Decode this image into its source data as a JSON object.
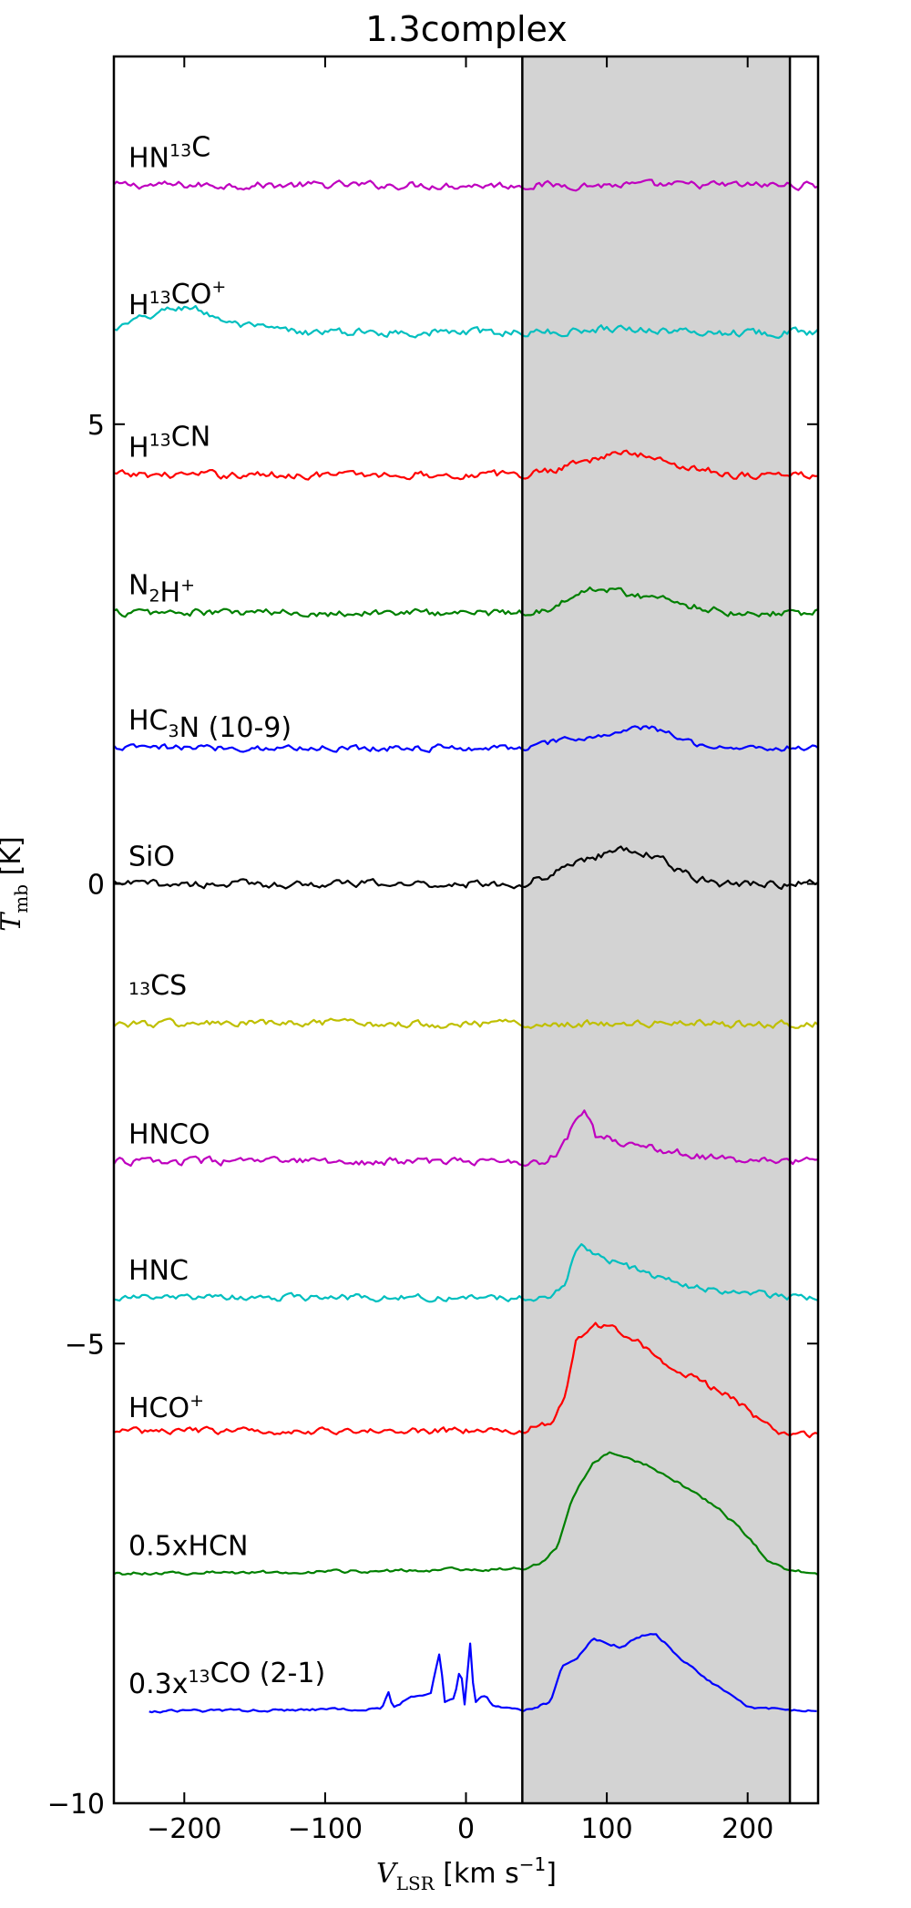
{
  "chart_data": {
    "type": "line",
    "title": "1.3complex",
    "xlabel": {
      "symbol": "V",
      "subscript": "LSR",
      "unit": " [km s",
      "unit_sup": "−1",
      "unit_end": "]"
    },
    "ylabel": {
      "symbol": "T",
      "subscript": "mb",
      "unit": " [K]"
    },
    "xlim": [
      -250,
      250
    ],
    "ylim": [
      -10,
      9
    ],
    "xticks": [
      -200,
      -100,
      0,
      100,
      200
    ],
    "xtick_labels": [
      "−200",
      "−100",
      "0",
      "100",
      "200"
    ],
    "yticks": [
      5,
      0,
      -5,
      -10
    ],
    "ytick_labels": [
      "5",
      "0",
      "−5",
      "−10"
    ],
    "shaded_region": {
      "x": [
        40,
        230
      ],
      "color": "#d3d3d3"
    },
    "series": [
      {
        "name": "HN13C",
        "label_parts": [
          {
            "t": "HN"
          },
          {
            "t": "13",
            "sup": true
          },
          {
            "t": "C"
          }
        ],
        "color": "#bf00bf",
        "offset": 7.6,
        "x_start": -250,
        "noise": 0.035,
        "profile": []
      },
      {
        "name": "H13CO+",
        "label_parts": [
          {
            "t": "H"
          },
          {
            "t": "13",
            "sup": true
          },
          {
            "t": "CO"
          },
          {
            "t": "+",
            "sup": true
          }
        ],
        "color": "#00bfbf",
        "offset": 6.0,
        "x_start": -250,
        "noise": 0.035,
        "profile": [
          [
            -250,
            0.02
          ],
          [
            -235,
            0.12
          ],
          [
            -210,
            0.25
          ],
          [
            -195,
            0.28
          ],
          [
            -180,
            0.18
          ],
          [
            -160,
            0.07
          ],
          [
            -120,
            0.0
          ],
          [
            70,
            0.0
          ],
          [
            100,
            0.05
          ],
          [
            130,
            0.03
          ],
          [
            160,
            0.0
          ]
        ]
      },
      {
        "name": "H13CN",
        "label_parts": [
          {
            "t": "H"
          },
          {
            "t": "13",
            "sup": true
          },
          {
            "t": "CN"
          }
        ],
        "color": "#ff0000",
        "offset": 4.45,
        "x_start": -250,
        "noise": 0.035,
        "profile": [
          [
            40,
            0.0
          ],
          [
            60,
            0.05
          ],
          [
            80,
            0.15
          ],
          [
            100,
            0.2
          ],
          [
            115,
            0.25
          ],
          [
            135,
            0.17
          ],
          [
            160,
            0.08
          ],
          [
            190,
            0.0
          ]
        ]
      },
      {
        "name": "N2H+",
        "label_parts": [
          {
            "t": "N"
          },
          {
            "t": "2",
            "sub": true
          },
          {
            "t": "H"
          },
          {
            "t": "+",
            "sup": true
          }
        ],
        "color": "#008000",
        "offset": 2.95,
        "x_start": -250,
        "noise": 0.035,
        "profile": [
          [
            40,
            0.0
          ],
          [
            60,
            0.05
          ],
          [
            75,
            0.15
          ],
          [
            92,
            0.28
          ],
          [
            110,
            0.22
          ],
          [
            135,
            0.16
          ],
          [
            160,
            0.08
          ],
          [
            190,
            0.0
          ]
        ]
      },
      {
        "name": "HC3N (10-9)",
        "label_parts": [
          {
            "t": "HC"
          },
          {
            "t": "3",
            "sub": true
          },
          {
            "t": "N (10-9)"
          }
        ],
        "color": "#0000ff",
        "offset": 1.48,
        "x_start": -250,
        "noise": 0.03,
        "profile": [
          [
            40,
            0.0
          ],
          [
            60,
            0.05
          ],
          [
            80,
            0.1
          ],
          [
            100,
            0.14
          ],
          [
            125,
            0.22
          ],
          [
            140,
            0.18
          ],
          [
            160,
            0.06
          ],
          [
            185,
            0.0
          ]
        ]
      },
      {
        "name": "SiO",
        "label_parts": [
          {
            "t": "SiO"
          }
        ],
        "color": "#000000",
        "offset": 0.0,
        "x_start": -250,
        "noise": 0.035,
        "profile": [
          [
            40,
            0.0
          ],
          [
            60,
            0.1
          ],
          [
            80,
            0.25
          ],
          [
            100,
            0.33
          ],
          [
            120,
            0.38
          ],
          [
            140,
            0.25
          ],
          [
            160,
            0.08
          ],
          [
            180,
            0.0
          ]
        ]
      },
      {
        "name": "13CS",
        "label_parts": [
          {
            "t": "13",
            "sup": true
          },
          {
            "t": "CS"
          }
        ],
        "color": "#bfbf00",
        "offset": -1.52,
        "x_start": -250,
        "noise": 0.035,
        "profile": []
      },
      {
        "name": "HNCO",
        "label_parts": [
          {
            "t": "HNCO"
          }
        ],
        "color": "#bf00bf",
        "offset": -3.02,
        "x_start": -250,
        "noise": 0.035,
        "profile": [
          [
            55,
            0.0
          ],
          [
            65,
            0.1
          ],
          [
            75,
            0.35
          ],
          [
            85,
            0.55
          ],
          [
            92,
            0.28
          ],
          [
            110,
            0.22
          ],
          [
            140,
            0.12
          ],
          [
            170,
            0.05
          ],
          [
            200,
            0.0
          ]
        ]
      },
      {
        "name": "HNC",
        "label_parts": [
          {
            "t": "HNC"
          }
        ],
        "color": "#00bfbf",
        "offset": -4.5,
        "x_start": -250,
        "noise": 0.03,
        "profile": [
          [
            60,
            0.0
          ],
          [
            70,
            0.15
          ],
          [
            78,
            0.5
          ],
          [
            82,
            0.55
          ],
          [
            100,
            0.42
          ],
          [
            130,
            0.25
          ],
          [
            160,
            0.12
          ],
          [
            200,
            0.05
          ],
          [
            240,
            0.0
          ]
        ]
      },
      {
        "name": "HCO+",
        "label_parts": [
          {
            "t": "HCO"
          },
          {
            "t": "+",
            "sup": true
          }
        ],
        "color": "#ff0000",
        "offset": -6.0,
        "x_start": -250,
        "noise": 0.03,
        "profile": [
          [
            40,
            0.05
          ],
          [
            60,
            0.15
          ],
          [
            70,
            0.4
          ],
          [
            78,
            1.0
          ],
          [
            90,
            1.2
          ],
          [
            102,
            1.2
          ],
          [
            120,
            1.05
          ],
          [
            140,
            0.8
          ],
          [
            165,
            0.6
          ],
          [
            190,
            0.4
          ],
          [
            210,
            0.15
          ],
          [
            225,
            0.03
          ],
          [
            240,
            0.0
          ]
        ]
      },
      {
        "name": "0.5xHCN",
        "label_parts": [
          {
            "t": "0.5xHCN"
          }
        ],
        "color": "#008000",
        "offset": -7.5,
        "x_start": -250,
        "noise": 0.015,
        "profile": [
          [
            -250,
            0.0
          ],
          [
            -100,
            0.02
          ],
          [
            40,
            0.05
          ],
          [
            55,
            0.12
          ],
          [
            65,
            0.3
          ],
          [
            75,
            0.8
          ],
          [
            90,
            1.2
          ],
          [
            102,
            1.3
          ],
          [
            122,
            1.22
          ],
          [
            150,
            1.0
          ],
          [
            180,
            0.7
          ],
          [
            200,
            0.4
          ],
          [
            215,
            0.12
          ],
          [
            230,
            0.03
          ],
          [
            250,
            0.0
          ]
        ]
      },
      {
        "name": "0.3x13CO (2-1)",
        "label_parts": [
          {
            "t": "0.3x"
          },
          {
            "t": "13",
            "sup": true
          },
          {
            "t": "CO (2-1)"
          }
        ],
        "color": "#0000ff",
        "offset": -9.0,
        "x_start": -225,
        "noise": 0.012,
        "profile": [
          [
            -225,
            0.0
          ],
          [
            -100,
            0.02
          ],
          [
            -60,
            0.03
          ],
          [
            -55,
            0.22
          ],
          [
            -52,
            0.03
          ],
          [
            -40,
            0.15
          ],
          [
            -25,
            0.2
          ],
          [
            -18,
            0.7
          ],
          [
            -16,
            0.08
          ],
          [
            -8,
            0.15
          ],
          [
            -4,
            0.48
          ],
          [
            -1,
            0.08
          ],
          [
            3,
            0.75
          ],
          [
            6,
            0.1
          ],
          [
            14,
            0.18
          ],
          [
            20,
            0.05
          ],
          [
            40,
            0.0
          ],
          [
            60,
            0.1
          ],
          [
            68,
            0.5
          ],
          [
            80,
            0.6
          ],
          [
            90,
            0.78
          ],
          [
            110,
            0.7
          ],
          [
            125,
            0.82
          ],
          [
            135,
            0.85
          ],
          [
            150,
            0.6
          ],
          [
            175,
            0.3
          ],
          [
            200,
            0.05
          ],
          [
            250,
            0.0
          ]
        ]
      }
    ]
  }
}
